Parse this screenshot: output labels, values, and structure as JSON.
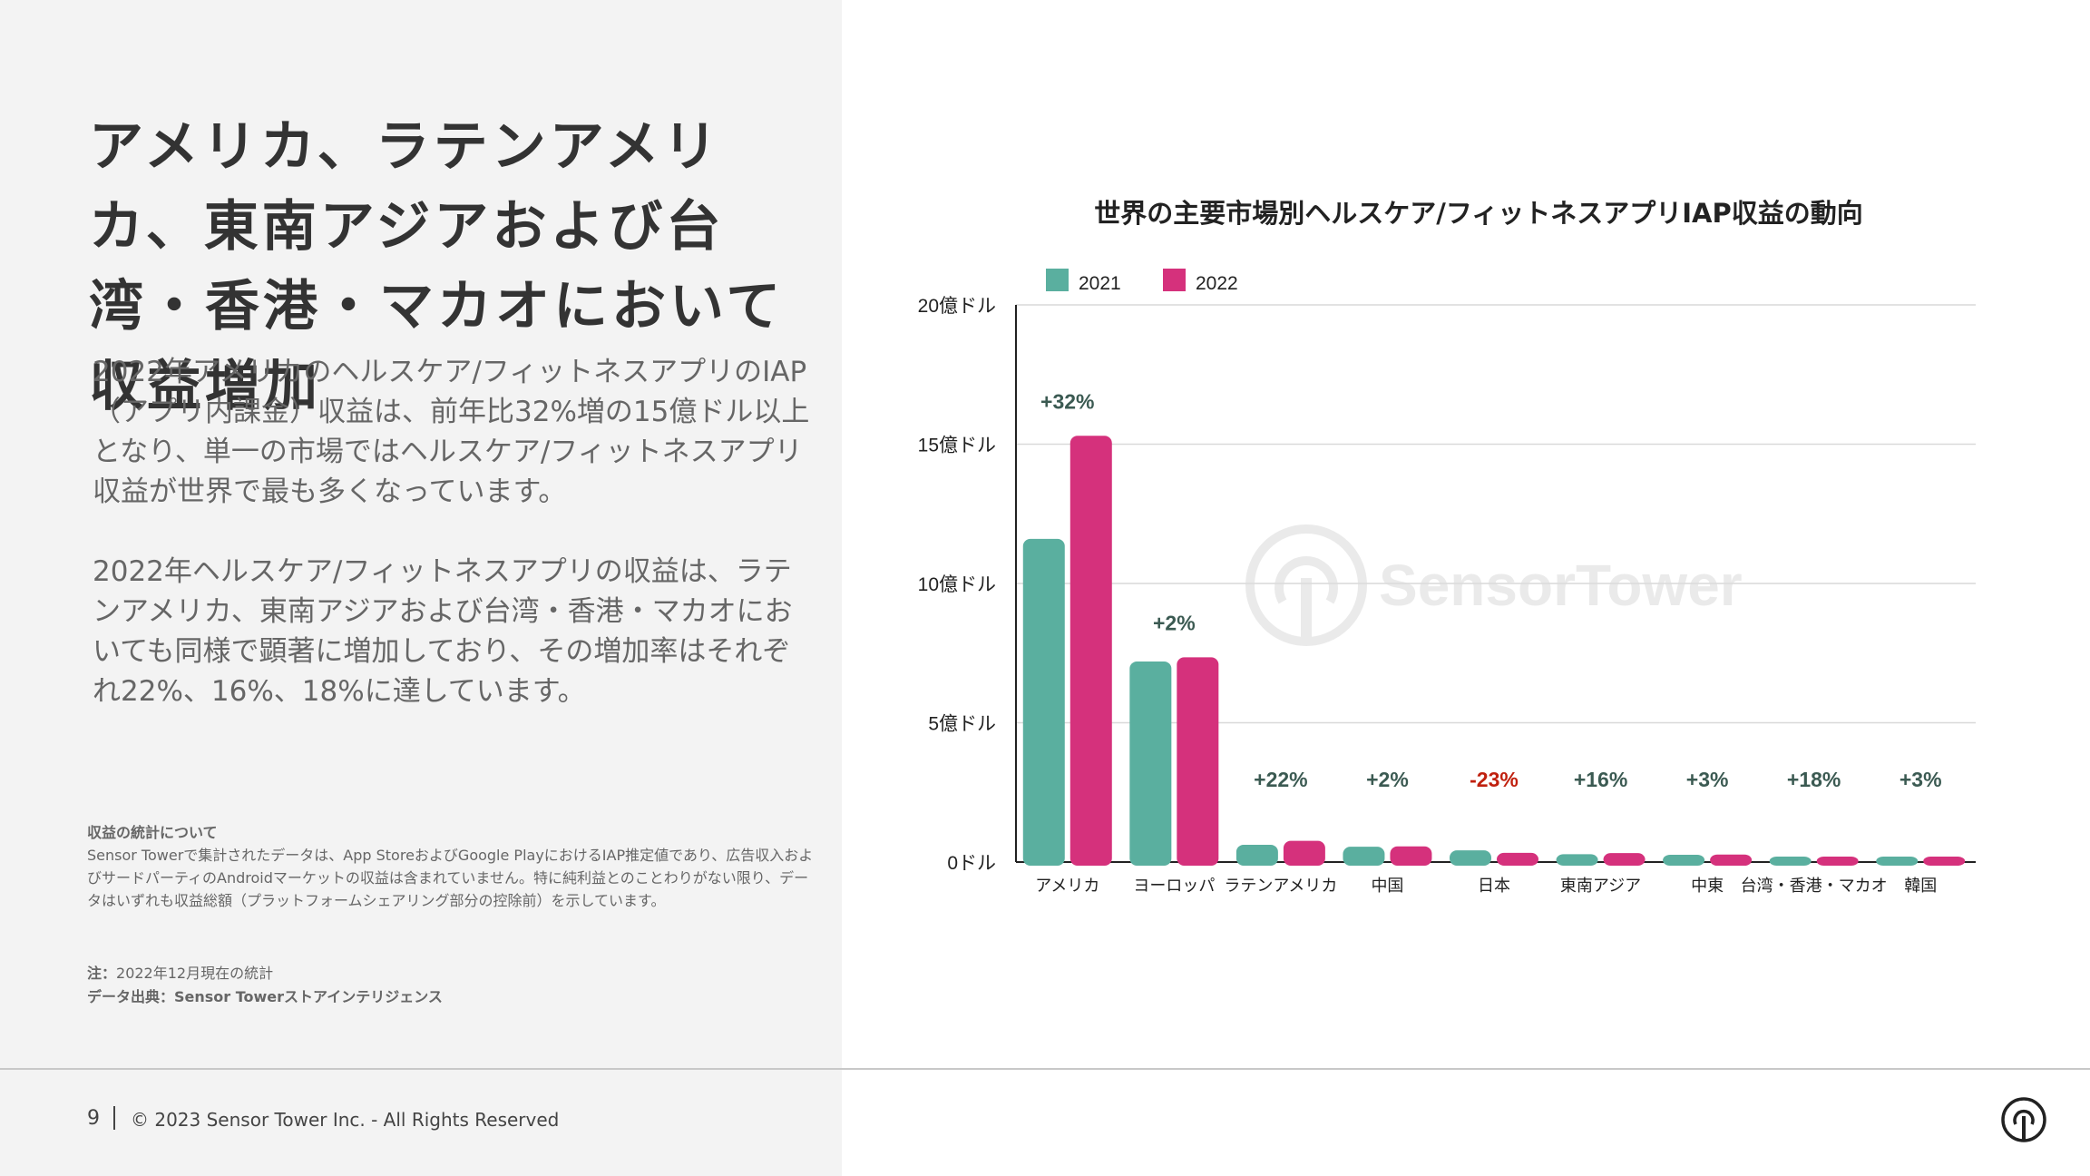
{
  "headline": "アメリカ、ラテンアメリカ、東南アジアおよび台湾・香港・マカオにおいて収益増加",
  "paragraphs": [
    "2022年アメリカのヘルスケア/フィットネスアプリのIAP（アプリ内課金）収益は、前年比32%増の15億ドル以上となり、単一の市場ではヘルスケア/フィットネスアプリ収益が世界で最も多くなっています。",
    "2022年ヘルスケア/フィットネスアプリの収益は、ラテンアメリカ、東南アジアおよび台湾・香港・マカオにおいても同様で顕著に増加しており、その増加率はそれぞれ22%、16%、18%に達しています。"
  ],
  "notes": {
    "heading": "収益の統計について",
    "body": "Sensor Towerで集計されたデータは、App StoreおよびGoogle PlayにおけるIAP推定値であり、広告収入およびサードパーティのAndroidマーケットの収益は含まれていません。特に純利益とのことわりがない限り、データはいずれも収益総額（プラットフォームシェアリング部分の控除前）を示しています。",
    "note_label": "注：",
    "note_text": "2022年12月現在の統計",
    "source": "データ出典：Sensor Towerストアインテリジェンス"
  },
  "footer": {
    "page": "9",
    "copyright": "© 2023 Sensor Tower Inc. - All Rights Reserved"
  },
  "watermark_text": "SensorTower",
  "colors": {
    "series_2021": "#5aaf9f",
    "series_2022": "#d5317c",
    "growth_positive": "#3b5a52",
    "growth_negative": "#c0200e"
  },
  "chart_data": {
    "type": "bar",
    "title": "世界の主要市場別ヘルスケア/フィットネスアプリIAP収益の動向",
    "categories": [
      "アメリカ",
      "ヨーロッパ",
      "ラテンアメリカ",
      "中国",
      "日本",
      "東南アジア",
      "中東",
      "台湾・香港・マカオ",
      "韓国"
    ],
    "series": [
      {
        "name": "2021",
        "values": [
          11.6,
          7.2,
          0.62,
          0.55,
          0.42,
          0.28,
          0.26,
          0.11,
          0.08
        ]
      },
      {
        "name": "2022",
        "values": [
          15.3,
          7.35,
          0.76,
          0.56,
          0.33,
          0.32,
          0.27,
          0.13,
          0.09
        ]
      }
    ],
    "growth_labels": [
      "+32%",
      "+2%",
      "+22%",
      "+2%",
      "-23%",
      "+16%",
      "+3%",
      "+18%",
      "+3%"
    ],
    "yticks": [
      0,
      5,
      10,
      15,
      20
    ],
    "ytick_labels": [
      "0ドル",
      "5億ドル",
      "10億ドル",
      "15億ドル",
      "20億ドル"
    ],
    "ylim": [
      0,
      20
    ],
    "unit": "億ドル",
    "legend_position": "top-left",
    "grid": true
  }
}
